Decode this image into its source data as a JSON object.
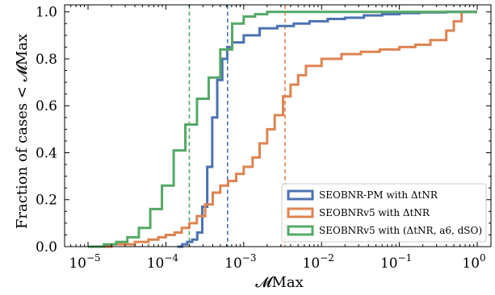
{
  "chart_data": {
    "type": "step",
    "title": "",
    "xlabel": "𝓜Max",
    "ylabel": "Fraction of cases < 𝓜Max",
    "xscale": "log",
    "xlim": [
      5e-06,
      1.5
    ],
    "ylim": [
      0,
      1.03
    ],
    "xticks": [
      {
        "value": 1e-05,
        "base": "10",
        "exp": "−5"
      },
      {
        "value": 0.0001,
        "base": "10",
        "exp": "−4"
      },
      {
        "value": 0.001,
        "base": "10",
        "exp": "−3"
      },
      {
        "value": 0.01,
        "base": "10",
        "exp": "−2"
      },
      {
        "value": 0.1,
        "base": "10",
        "exp": "−1"
      },
      {
        "value": 1,
        "base": "10",
        "exp": "0"
      }
    ],
    "yticks": [
      {
        "value": 0.0,
        "label": "0.0"
      },
      {
        "value": 0.2,
        "label": "0.2"
      },
      {
        "value": 0.4,
        "label": "0.4"
      },
      {
        "value": 0.6,
        "label": "0.6"
      },
      {
        "value": 0.8,
        "label": "0.8"
      },
      {
        "value": 1.0,
        "label": "1.0"
      }
    ],
    "grid": false,
    "legend_position": "lower-right",
    "series": [
      {
        "name": "SEOBNR-PM with ΔtNR",
        "color": "#4c72b0",
        "median_line": 0.00062,
        "steps": [
          [
            0.00014,
            0.0
          ],
          [
            0.000162,
            0.01
          ],
          [
            0.000188,
            0.02
          ],
          [
            0.000218,
            0.03
          ],
          [
            0.000253,
            0.06
          ],
          [
            0.000293,
            0.17
          ],
          [
            0.00034,
            0.34
          ],
          [
            0.000394,
            0.55
          ],
          [
            0.000457,
            0.71
          ],
          [
            0.00053,
            0.8
          ],
          [
            0.000614,
            0.85
          ],
          [
            0.000712,
            0.87
          ],
          [
            0.001,
            0.9
          ],
          [
            0.0016,
            0.93
          ],
          [
            0.0027,
            0.94
          ],
          [
            0.0044,
            0.95
          ],
          [
            0.007,
            0.96
          ],
          [
            0.012,
            0.97
          ],
          [
            0.02,
            0.975
          ],
          [
            0.035,
            0.985
          ],
          [
            0.06,
            0.99
          ],
          [
            0.1,
            0.995
          ],
          [
            0.18,
            0.998
          ],
          [
            0.4,
            1.0
          ],
          [
            1.0,
            1.0
          ]
        ]
      },
      {
        "name": "SEOBNRv5 with ΔtNR",
        "color": "#dd8452",
        "median_line": 0.0034,
        "steps": [
          [
            1e-05,
            0.0
          ],
          [
            2e-05,
            0.01
          ],
          [
            4e-05,
            0.02
          ],
          [
            6e-05,
            0.03
          ],
          [
            8e-05,
            0.04
          ],
          [
            0.0001,
            0.05
          ],
          [
            0.00013,
            0.06
          ],
          [
            0.00016,
            0.08
          ],
          [
            0.0002,
            0.1
          ],
          [
            0.00025,
            0.13
          ],
          [
            0.00032,
            0.18
          ],
          [
            0.0004,
            0.23
          ],
          [
            0.0005,
            0.26
          ],
          [
            0.00063,
            0.28
          ],
          [
            0.0008,
            0.31
          ],
          [
            0.001,
            0.34
          ],
          [
            0.0013,
            0.38
          ],
          [
            0.0016,
            0.44
          ],
          [
            0.002,
            0.5
          ],
          [
            0.0025,
            0.56
          ],
          [
            0.0032,
            0.64
          ],
          [
            0.004,
            0.69
          ],
          [
            0.005,
            0.73
          ],
          [
            0.0063,
            0.77
          ],
          [
            0.01,
            0.8
          ],
          [
            0.018,
            0.82
          ],
          [
            0.032,
            0.83
          ],
          [
            0.056,
            0.84
          ],
          [
            0.1,
            0.85
          ],
          [
            0.16,
            0.86
          ],
          [
            0.25,
            0.88
          ],
          [
            0.4,
            0.92
          ],
          [
            0.5,
            0.96
          ],
          [
            0.63,
            1.0
          ],
          [
            1.0,
            1.0
          ]
        ]
      },
      {
        "name": "SEOBNRv5 with (ΔtNR, a6, dSO)",
        "color": "#55a868",
        "median_line": 0.0002,
        "steps": [
          [
            1e-05,
            0.0
          ],
          [
            1.6e-05,
            0.01
          ],
          [
            2.3e-05,
            0.02
          ],
          [
            3.2e-05,
            0.04
          ],
          [
            4.5e-05,
            0.08
          ],
          [
            6.3e-05,
            0.16
          ],
          [
            8.9e-05,
            0.26
          ],
          [
            0.000126,
            0.41
          ],
          [
            0.000178,
            0.52
          ],
          [
            0.000251,
            0.63
          ],
          [
            0.000355,
            0.72
          ],
          [
            0.0005,
            0.84
          ],
          [
            0.00071,
            0.95
          ],
          [
            0.001,
            0.98
          ],
          [
            0.0014,
            0.99
          ],
          [
            0.002,
            1.0
          ],
          [
            1.0,
            1.0
          ]
        ]
      }
    ]
  }
}
